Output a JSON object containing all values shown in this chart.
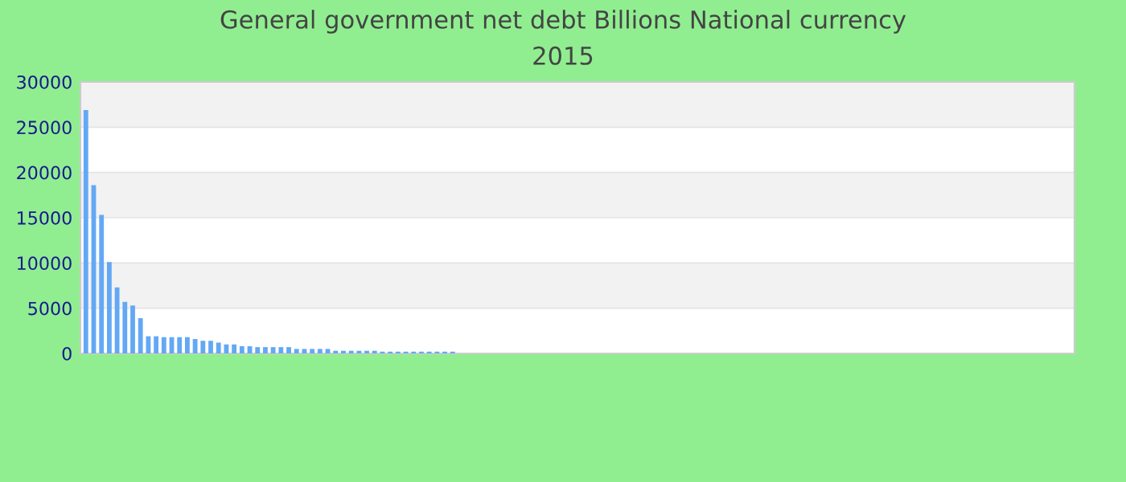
{
  "chart_data": {
    "type": "bar",
    "title": "General government net debt Billions National currency",
    "subtitle": "2015",
    "categories": [
      null,
      null,
      null,
      null,
      null,
      null,
      null,
      null,
      null,
      null,
      null,
      null,
      null,
      null,
      null,
      null,
      null,
      null,
      null,
      null,
      null,
      null,
      null,
      null,
      null,
      null,
      null,
      null,
      null,
      null,
      null,
      null,
      null,
      null,
      null,
      null,
      null,
      null,
      null,
      null,
      null,
      null,
      null,
      null,
      null,
      null,
      null,
      null,
      null,
      null,
      null,
      null,
      null,
      null,
      null,
      null,
      null,
      null,
      null,
      null,
      null,
      null,
      null,
      null,
      null,
      null,
      null,
      null,
      null,
      null,
      null,
      null,
      null,
      null,
      null,
      null,
      null,
      null,
      null,
      null,
      null,
      null,
      null,
      null,
      null,
      null,
      null,
      null,
      null,
      null,
      null,
      null,
      null,
      null,
      null,
      null,
      null,
      null,
      null,
      null,
      null,
      null,
      null,
      null,
      null,
      null,
      null,
      null,
      null,
      null,
      null,
      null,
      null,
      null,
      null,
      null,
      null,
      null,
      null,
      null,
      null,
      null,
      null,
      null,
      null,
      null,
      null
    ],
    "values": [
      26900,
      18600,
      15300,
      10100,
      7300,
      5700,
      5300,
      3900,
      1900,
      1900,
      1800,
      1800,
      1800,
      1800,
      1600,
      1400,
      1400,
      1200,
      1000,
      1000,
      800,
      800,
      700,
      700,
      700,
      700,
      700,
      500,
      500,
      500,
      500,
      500,
      300,
      300,
      300,
      300,
      300,
      300,
      200,
      200,
      200,
      200,
      200,
      200,
      200,
      200,
      200,
      200,
      0,
      0,
      0,
      0,
      0,
      0,
      0,
      0,
      0,
      0,
      0,
      0,
      0,
      0,
      0,
      0,
      0,
      0,
      0,
      0,
      0,
      0,
      0,
      0,
      0,
      0,
      0,
      0,
      0,
      0,
      0,
      0,
      0,
      0,
      0,
      0,
      0,
      0,
      0,
      0,
      0,
      0,
      0,
      0,
      0,
      0,
      0,
      0,
      0,
      0,
      0,
      0,
      0,
      0,
      0,
      0,
      0,
      0,
      0,
      0,
      0,
      0,
      0,
      0,
      0,
      0,
      0,
      0,
      0,
      0,
      0,
      0,
      0,
      0,
      0,
      0,
      0,
      0,
      0
    ],
    "color": "#63a8f5",
    "ylim": [
      0,
      30000
    ],
    "yticks": [
      0,
      5000,
      10000,
      15000,
      20000,
      25000,
      30000
    ],
    "grid": "y",
    "legend": false
  }
}
